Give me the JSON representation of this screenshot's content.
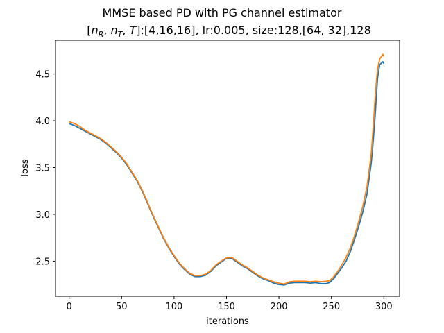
{
  "chart_data": {
    "type": "line",
    "title": "MMSE based PD with PG channel estimator",
    "subtitle_parts": {
      "n": "n",
      "R": "R",
      "sep": ", ",
      "T_sub": "T",
      "T": "T",
      "rest": ":[4,16,16], lr:0.005, size:128,[64, 32],128"
    },
    "xlabel": "iterations",
    "ylabel": "loss",
    "xlim": [
      -13,
      315
    ],
    "ylim": [
      2.125,
      4.86
    ],
    "xticks": [
      0,
      50,
      100,
      150,
      200,
      250,
      300
    ],
    "yticks": [
      2.5,
      3.0,
      3.5,
      4.0,
      4.5
    ],
    "xtick_labels": [
      "0",
      "50",
      "100",
      "150",
      "200",
      "250",
      "300"
    ],
    "ytick_labels": [
      "2.5",
      "3.0",
      "3.5",
      "4.0",
      "4.5"
    ],
    "grid": false,
    "series": [
      {
        "color": "#1f77b4",
        "points": [
          [
            0,
            3.97
          ],
          [
            5,
            3.95
          ],
          [
            10,
            3.92
          ],
          [
            15,
            3.89
          ],
          [
            20,
            3.86
          ],
          [
            25,
            3.83
          ],
          [
            30,
            3.8
          ],
          [
            35,
            3.76
          ],
          [
            40,
            3.71
          ],
          [
            45,
            3.66
          ],
          [
            50,
            3.6
          ],
          [
            55,
            3.53
          ],
          [
            60,
            3.44
          ],
          [
            65,
            3.35
          ],
          [
            70,
            3.24
          ],
          [
            75,
            3.11
          ],
          [
            80,
            2.98
          ],
          [
            85,
            2.86
          ],
          [
            90,
            2.74
          ],
          [
            95,
            2.64
          ],
          [
            100,
            2.55
          ],
          [
            105,
            2.47
          ],
          [
            110,
            2.41
          ],
          [
            115,
            2.36
          ],
          [
            120,
            2.335
          ],
          [
            125,
            2.335
          ],
          [
            130,
            2.35
          ],
          [
            135,
            2.39
          ],
          [
            140,
            2.45
          ],
          [
            145,
            2.49
          ],
          [
            150,
            2.53
          ],
          [
            155,
            2.53
          ],
          [
            160,
            2.49
          ],
          [
            165,
            2.45
          ],
          [
            170,
            2.42
          ],
          [
            175,
            2.38
          ],
          [
            180,
            2.34
          ],
          [
            185,
            2.31
          ],
          [
            190,
            2.29
          ],
          [
            195,
            2.265
          ],
          [
            200,
            2.25
          ],
          [
            205,
            2.245
          ],
          [
            210,
            2.265
          ],
          [
            215,
            2.27
          ],
          [
            220,
            2.27
          ],
          [
            225,
            2.27
          ],
          [
            230,
            2.265
          ],
          [
            235,
            2.27
          ],
          [
            240,
            2.26
          ],
          [
            245,
            2.26
          ],
          [
            248,
            2.27
          ],
          [
            252,
            2.31
          ],
          [
            256,
            2.37
          ],
          [
            260,
            2.43
          ],
          [
            264,
            2.5
          ],
          [
            268,
            2.6
          ],
          [
            272,
            2.73
          ],
          [
            276,
            2.87
          ],
          [
            280,
            3.03
          ],
          [
            284,
            3.22
          ],
          [
            288,
            3.55
          ],
          [
            290,
            3.8
          ],
          [
            292,
            4.1
          ],
          [
            294,
            4.45
          ],
          [
            296,
            4.6
          ],
          [
            298,
            4.62
          ],
          [
            299,
            4.63
          ],
          [
            300,
            4.61
          ]
        ]
      },
      {
        "color": "#ff7f0e",
        "points": [
          [
            0,
            3.99
          ],
          [
            5,
            3.97
          ],
          [
            10,
            3.94
          ],
          [
            15,
            3.9
          ],
          [
            20,
            3.87
          ],
          [
            25,
            3.84
          ],
          [
            30,
            3.81
          ],
          [
            35,
            3.77
          ],
          [
            40,
            3.72
          ],
          [
            45,
            3.67
          ],
          [
            50,
            3.61
          ],
          [
            55,
            3.54
          ],
          [
            60,
            3.45
          ],
          [
            65,
            3.36
          ],
          [
            70,
            3.25
          ],
          [
            75,
            3.12
          ],
          [
            80,
            2.99
          ],
          [
            85,
            2.87
          ],
          [
            90,
            2.75
          ],
          [
            95,
            2.65
          ],
          [
            100,
            2.56
          ],
          [
            105,
            2.48
          ],
          [
            110,
            2.42
          ],
          [
            115,
            2.37
          ],
          [
            120,
            2.345
          ],
          [
            125,
            2.345
          ],
          [
            130,
            2.36
          ],
          [
            135,
            2.4
          ],
          [
            140,
            2.46
          ],
          [
            145,
            2.5
          ],
          [
            150,
            2.535
          ],
          [
            155,
            2.54
          ],
          [
            160,
            2.5
          ],
          [
            165,
            2.46
          ],
          [
            170,
            2.43
          ],
          [
            175,
            2.39
          ],
          [
            180,
            2.35
          ],
          [
            185,
            2.32
          ],
          [
            190,
            2.3
          ],
          [
            195,
            2.28
          ],
          [
            200,
            2.265
          ],
          [
            205,
            2.255
          ],
          [
            210,
            2.28
          ],
          [
            215,
            2.285
          ],
          [
            220,
            2.285
          ],
          [
            225,
            2.285
          ],
          [
            230,
            2.28
          ],
          [
            235,
            2.285
          ],
          [
            240,
            2.28
          ],
          [
            245,
            2.285
          ],
          [
            248,
            2.29
          ],
          [
            252,
            2.33
          ],
          [
            256,
            2.39
          ],
          [
            260,
            2.46
          ],
          [
            264,
            2.54
          ],
          [
            268,
            2.64
          ],
          [
            272,
            2.77
          ],
          [
            276,
            2.92
          ],
          [
            280,
            3.09
          ],
          [
            284,
            3.3
          ],
          [
            288,
            3.65
          ],
          [
            290,
            3.95
          ],
          [
            292,
            4.3
          ],
          [
            294,
            4.55
          ],
          [
            296,
            4.66
          ],
          [
            298,
            4.69
          ],
          [
            299,
            4.71
          ],
          [
            300,
            4.69
          ]
        ]
      }
    ]
  }
}
